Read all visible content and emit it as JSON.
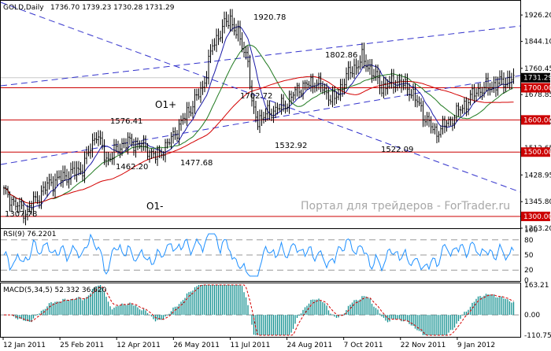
{
  "header": {
    "symbol": "GOLD,Daily",
    "ohlc": "1736.70 1739.23 1730.28 1731.29"
  },
  "watermark": "Портал для трейдеров - ForTrader.ru",
  "price_axis": {
    "min": 1263.2,
    "max": 1968.0,
    "ticks": [
      "1926.20",
      "1844.10",
      "1760.45",
      "1678.85",
      "1594.80",
      "1512.65",
      "1428.95",
      "1345.80",
      "1263.20"
    ],
    "tick_values": [
      1926.2,
      1844.1,
      1760.45,
      1678.85,
      1594.8,
      1512.65,
      1428.95,
      1345.8,
      1263.2
    ],
    "current_price": "1731.29",
    "current_value": 1731.29
  },
  "levels": [
    {
      "label": "1700.00",
      "value": 1700.0
    },
    {
      "label": "1600.00",
      "value": 1600.0
    },
    {
      "label": "1500.00",
      "value": 1500.0
    },
    {
      "label": "1300.00",
      "value": 1300.0
    }
  ],
  "annotations": {
    "p1920": "1920.78",
    "p1802": "1802.86",
    "p1702": "1702.72",
    "p1576": "1576.41",
    "p1532": "1532.92",
    "p1522": "1522.09",
    "p1477": "1477.68",
    "p1462": "1462.20",
    "p1307": "1307.78",
    "o1plus": "O1+",
    "o1minus": "O1-"
  },
  "rsi": {
    "title": "RSI(9) 76.2201",
    "ticks": [
      "100",
      "80",
      "50",
      "20",
      "0"
    ],
    "tick_values": [
      100,
      80,
      50,
      20,
      0
    ]
  },
  "macd": {
    "title": "MACD(5,34,5) 52.332 36.620",
    "ticks": [
      "163.21",
      "0.00",
      "-110.751"
    ],
    "tick_values": [
      163.21,
      0.0,
      -110.751
    ]
  },
  "time_axis": {
    "labels": [
      "12 Jan 2011",
      "25 Feb 2011",
      "12 Apr 2011",
      "26 May 2011",
      "11 Jul 2011",
      "24 Aug 2011",
      "7 Oct 2011",
      "22 Nov 2011",
      "9 Jan 2012"
    ]
  },
  "colors": {
    "candle": "#000000",
    "ma_fast": "#1a1aa6",
    "ma_mid": "#207a20",
    "ma_slow": "#d40000",
    "channel": "#3333cc",
    "level_line": "#cc0000",
    "level_label_bg": "#cc0000",
    "rsi_line": "#1e90ff",
    "macd_hist": "#0f8f8f",
    "macd_signal": "#d40000",
    "current_bg": "#000000"
  }
}
